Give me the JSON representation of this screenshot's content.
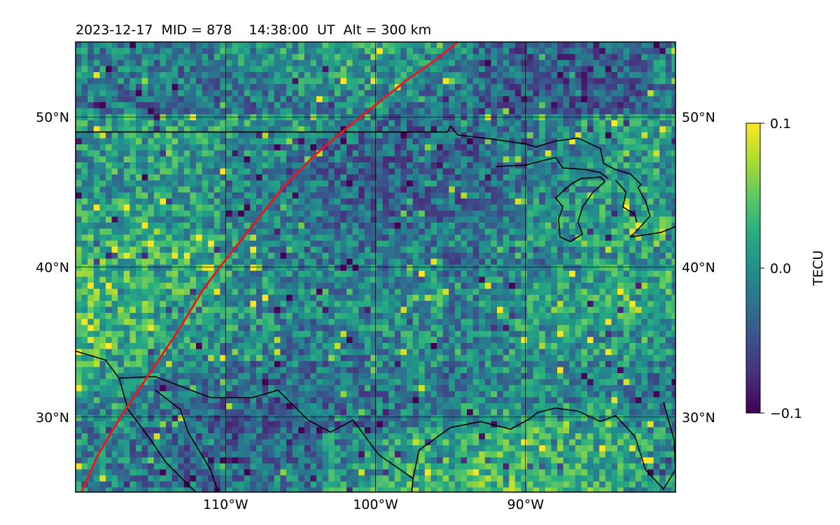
{
  "title": "2023-12-17  MID = 878    14:38:00  UT  Alt = 300 km",
  "map": {
    "lat_range": [
      25,
      55
    ],
    "lon_range": [
      -120,
      -80
    ],
    "lat_ticks": [
      {
        "value": 50,
        "label": "50°N"
      },
      {
        "value": 40,
        "label": "40°N"
      },
      {
        "value": 30,
        "label": "30°N"
      }
    ],
    "lon_ticks": [
      {
        "value": -110,
        "label": "110°W"
      },
      {
        "value": -100,
        "label": "100°W"
      },
      {
        "value": -90,
        "label": "90°W"
      }
    ],
    "track_color": "#e41a1c",
    "track": [
      [
        -119.6,
        25
      ],
      [
        -118.5,
        27.5
      ],
      [
        -117,
        30
      ],
      [
        -115,
        33
      ],
      [
        -113,
        36
      ],
      [
        -111.5,
        38.5
      ],
      [
        -110,
        40.5
      ],
      [
        -108,
        43
      ],
      [
        -106,
        45.5
      ],
      [
        -104,
        47.5
      ],
      [
        -102,
        49.2
      ],
      [
        -100,
        50.8
      ],
      [
        -98,
        52.4
      ],
      [
        -96,
        53.8
      ],
      [
        -94.5,
        55
      ]
    ],
    "coastlines": [
      [
        [
          -120,
          49
        ],
        [
          -95.2,
          49
        ],
        [
          -95,
          49.4
        ],
        [
          -94.5,
          48.8
        ],
        [
          -92,
          48.5
        ],
        [
          -90,
          48.2
        ],
        [
          -89.3,
          48
        ],
        [
          -88,
          48.4
        ],
        [
          -86.5,
          48.6
        ],
        [
          -85,
          47.9
        ],
        [
          -84.8,
          46.9
        ],
        [
          -84,
          46.5
        ],
        [
          -83,
          46.2
        ],
        [
          -82.3,
          45.5
        ],
        [
          -82.5,
          45.3
        ],
        [
          -82,
          44.4
        ],
        [
          -81.7,
          43.4
        ],
        [
          -82.5,
          42.5
        ],
        [
          -83,
          42
        ],
        [
          -81,
          42.3
        ],
        [
          -80,
          42.7
        ]
      ],
      [
        [
          -92,
          46.7
        ],
        [
          -90,
          46.8
        ],
        [
          -88,
          47.3
        ],
        [
          -87.5,
          46.6
        ],
        [
          -86,
          46.5
        ],
        [
          -85,
          46.3
        ],
        [
          -84.5,
          45.9
        ]
      ],
      [
        [
          -87.5,
          44
        ],
        [
          -88,
          44.6
        ],
        [
          -87,
          45.5
        ],
        [
          -86.3,
          45.9
        ],
        [
          -85,
          46
        ],
        [
          -84.7,
          45.7
        ],
        [
          -85.5,
          45
        ],
        [
          -86.2,
          44
        ],
        [
          -86.5,
          43
        ],
        [
          -86.2,
          42.2
        ],
        [
          -87,
          41.7
        ],
        [
          -87.7,
          42
        ],
        [
          -87.8,
          43.2
        ],
        [
          -87.5,
          44
        ]
      ],
      [
        [
          -84,
          45.8
        ],
        [
          -83.3,
          45
        ],
        [
          -83.5,
          44
        ],
        [
          -82.7,
          43.5
        ],
        [
          -82.6,
          43
        ]
      ],
      [
        [
          -120,
          34.4
        ],
        [
          -118,
          33.8
        ],
        [
          -117.1,
          32.6
        ],
        [
          -114.7,
          32.7
        ],
        [
          -111,
          31.3
        ],
        [
          -108.2,
          31.3
        ],
        [
          -106.5,
          31.8
        ],
        [
          -104.5,
          29.8
        ],
        [
          -103,
          29
        ],
        [
          -101.5,
          29.8
        ],
        [
          -99.8,
          27.5
        ],
        [
          -97.5,
          25.9
        ],
        [
          -97.1,
          27.8
        ],
        [
          -95,
          29.3
        ],
        [
          -93,
          29.7
        ],
        [
          -91,
          29.2
        ],
        [
          -89.7,
          29.9
        ],
        [
          -89.2,
          30.3
        ],
        [
          -88,
          30.6
        ],
        [
          -86.5,
          30.4
        ],
        [
          -85,
          29.7
        ],
        [
          -84,
          30.1
        ],
        [
          -82.7,
          28.7
        ],
        [
          -82,
          26.5
        ],
        [
          -80.8,
          25.2
        ],
        [
          -80,
          26.5
        ],
        [
          -80.1,
          28.5
        ],
        [
          -80.8,
          31
        ]
      ],
      [
        [
          -117.1,
          32.6
        ],
        [
          -116.5,
          30.5
        ],
        [
          -115,
          28.5
        ],
        [
          -114,
          27
        ],
        [
          -112.5,
          25.5
        ],
        [
          -112,
          25
        ]
      ],
      [
        [
          -114.7,
          31.8
        ],
        [
          -113,
          30.5
        ],
        [
          -112.5,
          29
        ],
        [
          -111,
          26.5
        ],
        [
          -110.5,
          25
        ]
      ],
      [
        [
          -97.5,
          25.9
        ],
        [
          -97.7,
          24
        ],
        [
          -97.5,
          22
        ]
      ]
    ]
  },
  "colorbar": {
    "label": "TECU",
    "min": -0.1,
    "max": 0.1,
    "ticks": [
      {
        "value": 0.1,
        "label": "0.1"
      },
      {
        "value": 0.0,
        "label": "0.0"
      },
      {
        "value": -0.1,
        "label": "−0.1"
      }
    ],
    "colormap": "viridis",
    "stops": [
      "#440154",
      "#472d7b",
      "#3b528b",
      "#2c728e",
      "#21918c",
      "#28ae80",
      "#5ec962",
      "#addc30",
      "#fde725"
    ]
  }
}
